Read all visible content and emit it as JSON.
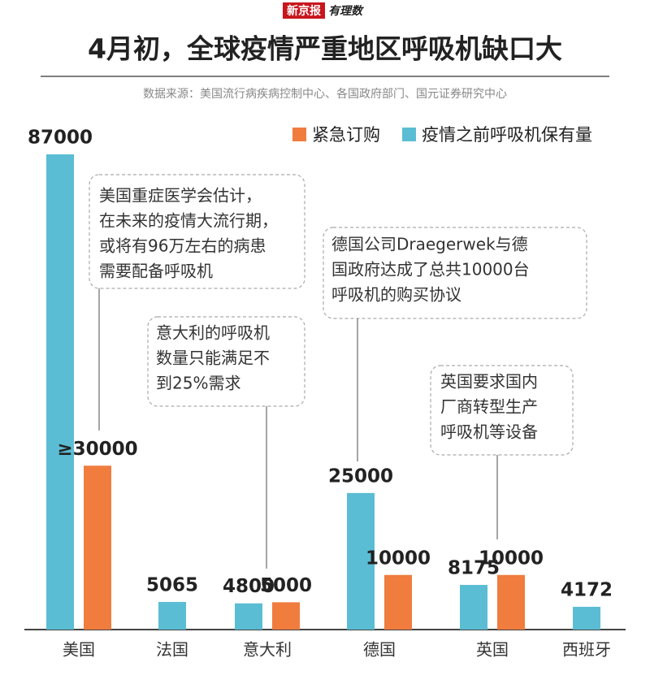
{
  "header": {
    "logo": "新京报",
    "brand": "有理数"
  },
  "chart_data": {
    "type": "bar",
    "title": "4月初，全球疫情严重地区呼吸机缺口大",
    "subtitle": "数据来源：美国流行病疾病控制中心、各国政府部门、国元证券研究中心",
    "categories": [
      "美国",
      "法国",
      "意大利",
      "德国",
      "英国",
      "西班牙"
    ],
    "series": [
      {
        "name": "疫情之前呼吸机保有量",
        "color": "#5bbdd4",
        "values": [
          87000,
          5065,
          4800,
          25000,
          8175,
          4172
        ]
      },
      {
        "name": "紧急订购",
        "color": "#f07c3e",
        "values": [
          30000,
          null,
          5000,
          10000,
          10000,
          null
        ],
        "value_labels": [
          "≥30000",
          null,
          "5000",
          "10000",
          "10000",
          null
        ]
      }
    ],
    "ylim": [
      0,
      87000
    ],
    "annotations": [
      {
        "lines": [
          "美国重症医学会估计，",
          "在未来的疫情大流行期，",
          "或将有96万左右的病患",
          "需要配备呼吸机"
        ]
      },
      {
        "lines": [
          "意大利的呼吸机",
          "数量只能满足不",
          "到25%需求"
        ]
      },
      {
        "lines": [
          "德国公司Draegerwek与德",
          "国政府达成了总共10000台",
          "呼吸机的购买协议"
        ]
      },
      {
        "lines": [
          "英国要求国内",
          "厂商转型生产",
          "呼吸机等设备"
        ]
      }
    ]
  }
}
